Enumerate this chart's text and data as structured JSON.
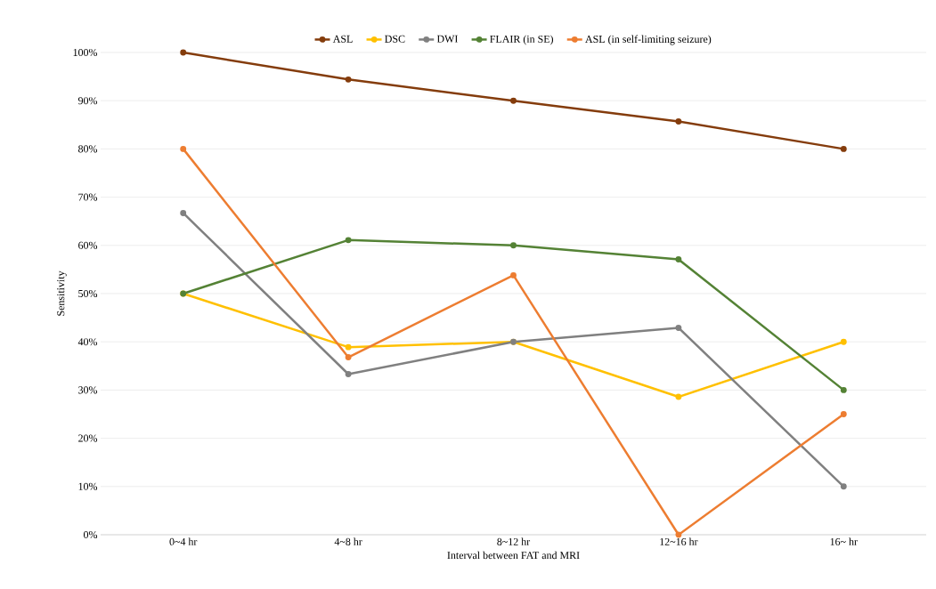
{
  "chart_data": {
    "type": "line",
    "xlabel": "Interval between FAT and MRI",
    "ylabel": "Sensitivity",
    "categories": [
      "0~4 hr",
      "4~8 hr",
      "8~12 hr",
      "12~16 hr",
      "16~ hr"
    ],
    "series": [
      {
        "name": "ASL",
        "color": "#843c0c",
        "values": [
          100,
          94.4,
          90,
          85.7,
          80
        ]
      },
      {
        "name": "DSC",
        "color": "#ffc000",
        "values": [
          50,
          38.9,
          40,
          28.6,
          40
        ]
      },
      {
        "name": "DWI",
        "color": "#808080",
        "values": [
          66.7,
          33.3,
          40,
          42.9,
          10
        ]
      },
      {
        "name": "FLAIR (in SE)",
        "color": "#548235",
        "values": [
          50,
          61.1,
          60,
          57.1,
          30
        ]
      },
      {
        "name": "ASL (in self-limiting seizure)",
        "color": "#ed7d31",
        "values": [
          80,
          36.8,
          53.8,
          0,
          25
        ]
      }
    ],
    "ylim": [
      0,
      100
    ],
    "yticks": [
      {
        "value": 0,
        "label": "0%"
      },
      {
        "value": 10,
        "label": "10%"
      },
      {
        "value": 20,
        "label": "20%"
      },
      {
        "value": 30,
        "label": "30%"
      },
      {
        "value": 40,
        "label": "40%"
      },
      {
        "value": 50,
        "label": "50%"
      },
      {
        "value": 60,
        "label": "60%"
      },
      {
        "value": 70,
        "label": "70%"
      },
      {
        "value": 80,
        "label": "80%"
      },
      {
        "value": 90,
        "label": "90%"
      },
      {
        "value": 100,
        "label": "100%"
      }
    ],
    "grid": "y",
    "legend": "top",
    "marker": "circle",
    "line_style": "solid"
  }
}
